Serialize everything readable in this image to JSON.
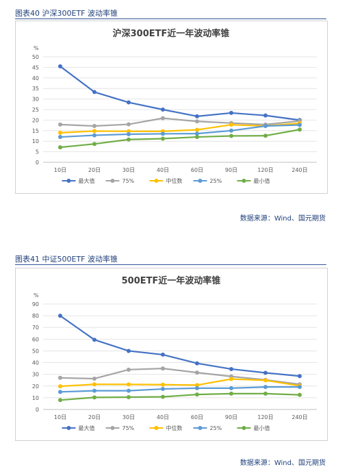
{
  "colors": {
    "max": "#4472C4",
    "p75": "#A5A5A5",
    "median": "#FFC000",
    "p25": "#5B9BD5",
    "min": "#70AD47",
    "caption": "#1f3f7a"
  },
  "figures": [
    {
      "caption": "图表40 沪深300ETF 波动率锥",
      "source": "数据来源：Wind、国元期货"
    },
    {
      "caption": "图表41 中证500ETF 波动率锥",
      "source": "数据来源：Wind、国元期货"
    }
  ],
  "chart_data": [
    {
      "type": "line",
      "title": "沪深300ETF近一年波动率锥",
      "ylabel": "%",
      "xlabel": "",
      "categories": [
        "10日",
        "20日",
        "30日",
        "40日",
        "60日",
        "90日",
        "120日",
        "240日"
      ],
      "ylim": [
        0,
        50
      ],
      "yticks": [
        0,
        5,
        10,
        15,
        20,
        25,
        30,
        35,
        40,
        45,
        50
      ],
      "grid": true,
      "legend": "bottom",
      "series": [
        {
          "name": "最大值",
          "key": "max",
          "values": [
            45.5,
            33.3,
            28.4,
            25.0,
            21.8,
            23.4,
            22.2,
            20.0
          ]
        },
        {
          "name": "75%",
          "key": "p75",
          "values": [
            17.9,
            17.2,
            18.0,
            20.9,
            19.4,
            18.6,
            17.9,
            19.6
          ]
        },
        {
          "name": "中位数",
          "key": "median",
          "values": [
            14.0,
            14.8,
            14.7,
            14.7,
            15.4,
            17.8,
            17.2,
            18.5
          ]
        },
        {
          "name": "25%",
          "key": "p25",
          "values": [
            12.0,
            12.8,
            13.3,
            13.5,
            13.6,
            15.0,
            17.2,
            17.7
          ]
        },
        {
          "name": "最小值",
          "key": "min",
          "values": [
            7.1,
            8.7,
            10.8,
            11.2,
            12.0,
            12.5,
            12.6,
            15.5
          ]
        }
      ]
    },
    {
      "type": "line",
      "title": "500ETF近一年波动率锥",
      "ylabel": "%",
      "xlabel": "",
      "categories": [
        "10日",
        "20日",
        "30日",
        "40日",
        "60日",
        "90日",
        "120日",
        "240日"
      ],
      "ylim": [
        0,
        90
      ],
      "yticks": [
        0,
        10,
        20,
        30,
        40,
        50,
        60,
        70,
        80,
        90
      ],
      "grid": true,
      "legend": "bottom",
      "series": [
        {
          "name": "最大值",
          "key": "max",
          "values": [
            80.0,
            59.5,
            50.0,
            46.8,
            39.4,
            34.5,
            31.3,
            28.5
          ]
        },
        {
          "name": "75%",
          "key": "p75",
          "values": [
            27.0,
            26.3,
            34.0,
            35.0,
            31.5,
            28.2,
            25.3,
            21.5
          ]
        },
        {
          "name": "中位数",
          "key": "median",
          "values": [
            19.8,
            21.5,
            21.4,
            21.2,
            20.8,
            26.0,
            24.9,
            20.2
          ]
        },
        {
          "name": "25%",
          "key": "p25",
          "values": [
            15.0,
            16.0,
            16.0,
            17.5,
            18.2,
            18.2,
            19.2,
            19.2
          ]
        },
        {
          "name": "最小值",
          "key": "min",
          "values": [
            8.0,
            10.3,
            10.5,
            10.8,
            12.8,
            13.5,
            13.5,
            12.5
          ]
        }
      ]
    }
  ]
}
